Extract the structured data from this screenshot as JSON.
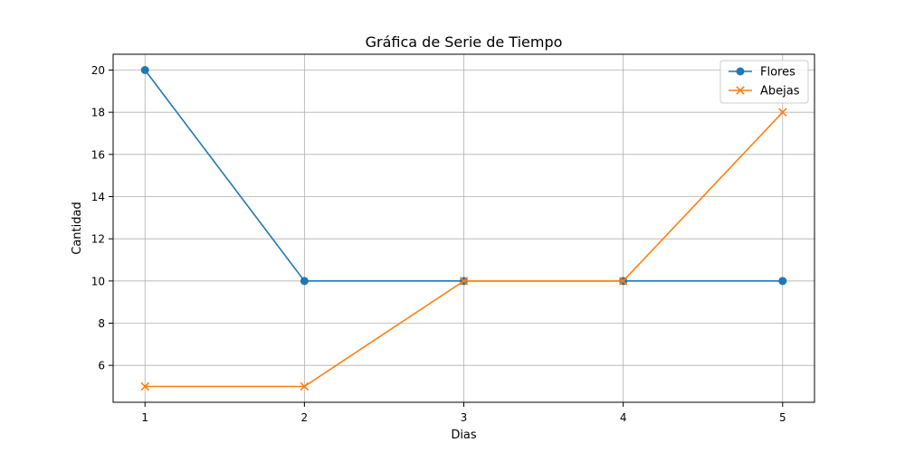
{
  "chart_data": {
    "type": "line",
    "title": "Gráfica de Serie de Tiempo",
    "xlabel": "Dias",
    "ylabel": "Cantidad",
    "x": [
      1,
      2,
      3,
      4,
      5
    ],
    "xticks": [
      1,
      2,
      3,
      4,
      5
    ],
    "yticks": [
      6,
      8,
      10,
      12,
      14,
      16,
      18,
      20
    ],
    "xlim": [
      0.8,
      5.2
    ],
    "ylim": [
      4.25,
      20.75
    ],
    "grid": true,
    "legend_position": "top-right",
    "series": [
      {
        "name": "Flores",
        "values": [
          20,
          10,
          10,
          10,
          10
        ],
        "color": "#1f77b4",
        "marker": "circle"
      },
      {
        "name": "Abejas",
        "values": [
          5,
          5,
          10,
          10,
          18
        ],
        "color": "#ff7f0e",
        "marker": "x"
      }
    ]
  }
}
